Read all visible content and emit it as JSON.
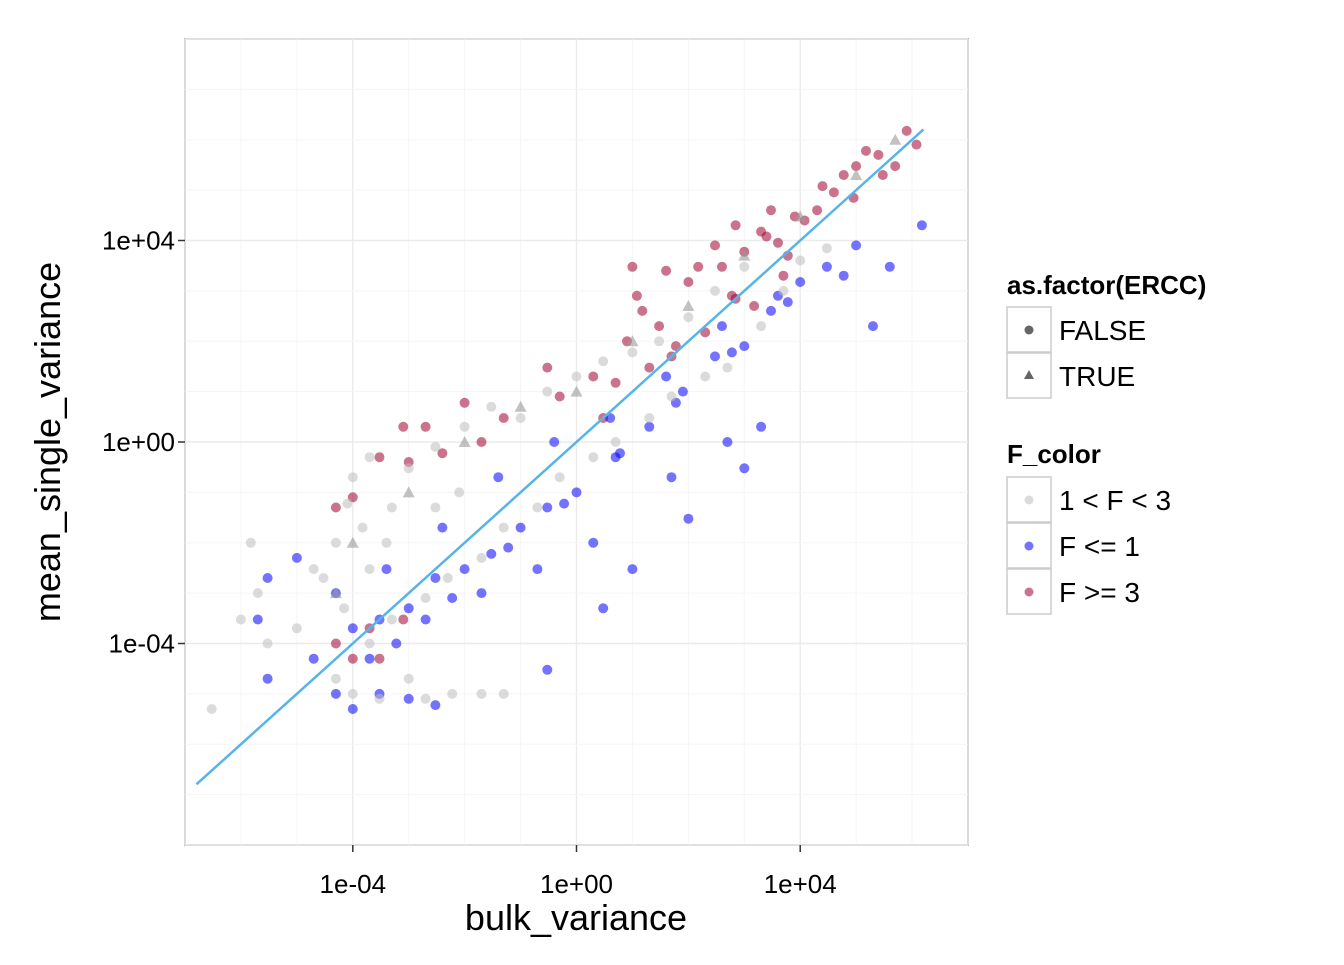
{
  "chart_data": {
    "type": "scatter",
    "title": "",
    "xlabel": "bulk_variance",
    "ylabel": "mean_single_variance",
    "x_scale": "log10",
    "y_scale": "log10",
    "xlim": [
      1e-07,
      10000000.0
    ],
    "ylim": [
      1e-08,
      100000000.0
    ],
    "x_ticks": [
      0.0001,
      1,
      10000.0
    ],
    "x_tick_labels": [
      "1e-04",
      "1e+00",
      "1e+04"
    ],
    "y_ticks": [
      0.0001,
      1,
      10000.0
    ],
    "y_tick_labels": [
      "1e-04",
      "1e+00",
      "1e+04"
    ],
    "grid": true,
    "legend_position": "right",
    "reference_line": {
      "type": "y = x",
      "from": 1.6e-07,
      "to": 1600000.0,
      "color": "#56B4E9"
    },
    "legends": [
      {
        "title": "as.factor(ERCC)",
        "entries": [
          {
            "label": "FALSE",
            "shape": "circle"
          },
          {
            "label": "TRUE",
            "shape": "triangle"
          }
        ]
      },
      {
        "title": "F_color",
        "entries": [
          {
            "label": "1 < F < 3",
            "color": "#BEBEBE"
          },
          {
            "label": "F <= 1",
            "color": "#0000FF"
          },
          {
            "label": "F >= 3",
            "color": "#A00030"
          }
        ]
      }
    ],
    "series": [
      {
        "name": "F >= 3",
        "color": "#A00030",
        "points": [
          [
            12,
            800
          ],
          [
            40,
            2500
          ],
          [
            150,
            3000
          ],
          [
            300,
            8000
          ],
          [
            1000,
            6000
          ],
          [
            2000,
            15000
          ],
          [
            4000,
            9000
          ],
          [
            8000,
            30000
          ],
          [
            20000,
            40000
          ],
          [
            60000,
            200000
          ],
          [
            150000,
            600000
          ],
          [
            800000,
            1500000
          ],
          [
            1200000,
            800000
          ],
          [
            300000,
            200000
          ],
          [
            90000,
            70000
          ],
          [
            5000,
            2000
          ],
          [
            700,
            700
          ],
          [
            200,
            150
          ],
          [
            60,
            80
          ],
          [
            20,
            30
          ],
          [
            5,
            15
          ],
          [
            2,
            20
          ],
          [
            0.5,
            8
          ],
          [
            0.3,
            30
          ],
          [
            0.05,
            3
          ],
          [
            0.02,
            1
          ],
          [
            0.01,
            6
          ],
          [
            0.004,
            0.6
          ],
          [
            0.002,
            2
          ],
          [
            0.001,
            0.4
          ],
          [
            0.0008,
            2
          ],
          [
            0.0003,
            0.5
          ],
          [
            0.0001,
            0.08
          ],
          [
            5e-05,
            0.05
          ],
          [
            30,
            200
          ],
          [
            100,
            1500
          ],
          [
            400,
            3000
          ],
          [
            2500,
            12000
          ],
          [
            12000,
            25000
          ],
          [
            40000,
            90000
          ],
          [
            100000,
            300000
          ],
          [
            250000,
            500000
          ],
          [
            500000,
            300000
          ],
          [
            3000,
            40000
          ],
          [
            700,
            20000
          ],
          [
            10,
            3000
          ],
          [
            25000,
            120000
          ],
          [
            6000,
            5000
          ],
          [
            1500,
            500
          ],
          [
            50,
            50
          ],
          [
            3,
            3
          ],
          [
            8,
            100
          ],
          [
            15,
            400
          ],
          [
            600,
            800
          ],
          [
            0.0002,
            0.0002
          ],
          [
            0.0003,
            5e-05
          ],
          [
            0.0008,
            0.0003
          ],
          [
            0.0001,
            5e-05
          ],
          [
            5e-05,
            0.0001
          ]
        ]
      },
      {
        "name": "F <= 1",
        "color": "#0000FF",
        "points": [
          [
            1,
            0.1
          ],
          [
            5,
            0.5
          ],
          [
            20,
            2
          ],
          [
            80,
            10
          ],
          [
            300,
            50
          ],
          [
            1000,
            80
          ],
          [
            3000,
            400
          ],
          [
            10000,
            1500
          ],
          [
            30000,
            3000
          ],
          [
            100000,
            8000
          ],
          [
            400000,
            3000
          ],
          [
            1500000,
            20000
          ],
          [
            0.3,
            0.05
          ],
          [
            0.1,
            0.02
          ],
          [
            0.03,
            0.006
          ],
          [
            0.01,
            0.003
          ],
          [
            0.003,
            0.002
          ],
          [
            0.001,
            0.0005
          ],
          [
            0.0003,
            0.0003
          ],
          [
            0.0001,
            0.0002
          ],
          [
            5e-05,
            0.001
          ],
          [
            5e-05,
            1e-05
          ],
          [
            0.0001,
            5e-06
          ],
          [
            0.0003,
            1e-05
          ],
          [
            0.001,
            8e-06
          ],
          [
            0.003,
            6e-06
          ],
          [
            2e-05,
            5e-05
          ],
          [
            3e-06,
            0.002
          ],
          [
            2e-06,
            0.0003
          ],
          [
            3e-06,
            2e-05
          ],
          [
            1e-05,
            0.005
          ],
          [
            0.3,
            3e-05
          ],
          [
            3,
            0.0005
          ],
          [
            10,
            0.003
          ],
          [
            100,
            0.03
          ],
          [
            1000,
            0.3
          ],
          [
            2000,
            2
          ],
          [
            500,
            1
          ],
          [
            50,
            0.2
          ],
          [
            2,
            0.01
          ],
          [
            0.2,
            0.003
          ],
          [
            0.02,
            0.001
          ],
          [
            0.002,
            0.0003
          ],
          [
            0.0002,
            5e-05
          ],
          [
            0.0006,
            0.0001
          ],
          [
            0.006,
            0.0008
          ],
          [
            0.06,
            0.008
          ],
          [
            0.6,
            0.06
          ],
          [
            6,
            0.6
          ],
          [
            60,
            6
          ],
          [
            600,
            60
          ],
          [
            6000,
            600
          ],
          [
            60000,
            2000
          ],
          [
            200000,
            200
          ],
          [
            0.0004,
            0.003
          ],
          [
            0.004,
            0.02
          ],
          [
            0.04,
            0.2
          ],
          [
            0.4,
            1
          ],
          [
            4,
            3
          ],
          [
            40,
            20
          ],
          [
            400,
            200
          ],
          [
            4000,
            800
          ]
        ]
      },
      {
        "name": "1 < F < 3",
        "color": "#BEBEBE",
        "points": [
          [
            3e-07,
            5e-06
          ],
          [
            1e-06,
            0.0003
          ],
          [
            1.5e-06,
            0.01
          ],
          [
            2e-06,
            0.001
          ],
          [
            3e-06,
            0.0001
          ],
          [
            1e-05,
            0.0002
          ],
          [
            2e-05,
            0.003
          ],
          [
            5e-05,
            0.01
          ],
          [
            0.0001,
            0.2
          ],
          [
            0.0002,
            0.5
          ],
          [
            0.0005,
            0.05
          ],
          [
            0.001,
            0.3
          ],
          [
            0.003,
            0.8
          ],
          [
            0.01,
            2
          ],
          [
            0.03,
            5
          ],
          [
            0.1,
            3
          ],
          [
            0.3,
            10
          ],
          [
            1,
            20
          ],
          [
            3,
            40
          ],
          [
            10,
            60
          ],
          [
            30,
            100
          ],
          [
            100,
            300
          ],
          [
            300,
            1000
          ],
          [
            1000,
            3000
          ],
          [
            10000,
            4000
          ],
          [
            30000,
            7000
          ],
          [
            5e-05,
            2e-05
          ],
          [
            0.0001,
            1e-05
          ],
          [
            0.0003,
            8e-06
          ],
          [
            0.001,
            2e-05
          ],
          [
            0.002,
            8e-06
          ],
          [
            0.006,
            1e-05
          ],
          [
            0.02,
            1e-05
          ],
          [
            0.05,
            1e-05
          ],
          [
            0.0002,
            0.0001
          ],
          [
            0.0005,
            0.0003
          ],
          [
            0.002,
            0.0008
          ],
          [
            0.005,
            0.002
          ],
          [
            0.02,
            0.005
          ],
          [
            0.05,
            0.02
          ],
          [
            0.2,
            0.05
          ],
          [
            0.5,
            0.2
          ],
          [
            2,
            0.5
          ],
          [
            5,
            1
          ],
          [
            20,
            3
          ],
          [
            50,
            8
          ],
          [
            200,
            20
          ],
          [
            500,
            30
          ],
          [
            2000,
            200
          ],
          [
            5000,
            1000
          ],
          [
            3e-05,
            0.002
          ],
          [
            7e-05,
            0.0005
          ],
          [
            0.0002,
            0.003
          ],
          [
            0.0004,
            0.01
          ],
          [
            8e-05,
            0.06
          ],
          [
            0.00015,
            0.02
          ],
          [
            0.003,
            0.05
          ],
          [
            0.008,
            0.1
          ]
        ]
      }
    ],
    "ercc_triangle_points": [
      [
        0.01,
        1
      ],
      [
        0.1,
        5
      ],
      [
        1,
        10
      ],
      [
        10,
        100
      ],
      [
        100,
        500
      ],
      [
        1000,
        5000
      ],
      [
        10000,
        30000
      ],
      [
        100000,
        200000
      ],
      [
        500000,
        1000000
      ],
      [
        0.001,
        0.1
      ],
      [
        0.0001,
        0.01
      ],
      [
        5e-05,
        0.001
      ]
    ]
  }
}
